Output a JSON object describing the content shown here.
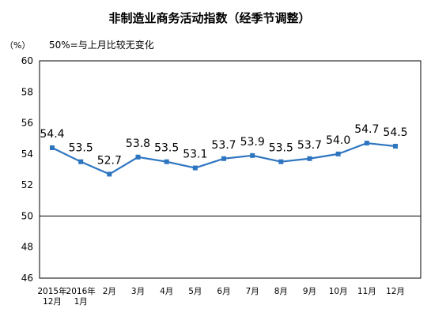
{
  "chart_data": {
    "type": "line",
    "title": "非制造业商务活动指数（经季节调整）",
    "unit_label": "（%）",
    "annotation": "50%=与上月比较无变化",
    "categories": [
      [
        "2015年",
        "12月"
      ],
      [
        "2016年",
        "1月"
      ],
      [
        "2月"
      ],
      [
        "3月"
      ],
      [
        "4月"
      ],
      [
        "5月"
      ],
      [
        "6月"
      ],
      [
        "7月"
      ],
      [
        "8月"
      ],
      [
        "9月"
      ],
      [
        "10月"
      ],
      [
        "11月"
      ],
      [
        "12月"
      ]
    ],
    "series": [
      {
        "values": [
          54.4,
          53.5,
          52.7,
          53.8,
          53.5,
          53.1,
          53.7,
          53.9,
          53.5,
          53.7,
          54.0,
          54.7,
          54.5
        ],
        "labels": [
          "54.4",
          "53.5",
          "52.7",
          "53.8",
          "53.5",
          "53.1",
          "53.7",
          "53.9",
          "53.5",
          "53.7",
          "54.0",
          "54.7",
          "54.5"
        ],
        "color": "#2e75c0"
      }
    ],
    "y_ticks": [
      46,
      48,
      50,
      52,
      54,
      56,
      58,
      60
    ],
    "ylim": [
      46,
      60
    ],
    "reference_line": 50,
    "grid": false,
    "legend": "none"
  }
}
